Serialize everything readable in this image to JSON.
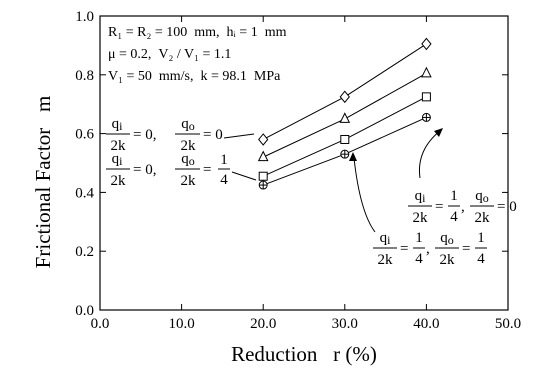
{
  "chart_data": {
    "type": "line",
    "xlabel": "Reduction   r (%)",
    "ylabel": "Frictional Factor   m",
    "xlim": [
      0,
      50
    ],
    "ylim": [
      0,
      1.0
    ],
    "x_ticks": [
      "0.0",
      "10.0",
      "20.0",
      "30.0",
      "40.0",
      "50.0"
    ],
    "y_ticks": [
      "0.0",
      "0.2",
      "0.4",
      "0.6",
      "0.8",
      "1.0"
    ],
    "grid": false,
    "conditions": [
      "R₁ = R₂ = 100  mm,  hᵢ = 1  mm",
      "μ = 0.2,  V₂ / V₁ = 1.1",
      "V₁ = 50  mm/s,  k = 98.1  MPa"
    ],
    "series": [
      {
        "marker": "diamond",
        "label": "qi/2k = 0, qo/2k = 0",
        "x": [
          20,
          30,
          40
        ],
        "y": [
          0.58,
          0.725,
          0.905
        ]
      },
      {
        "marker": "triangle",
        "label": "",
        "x": [
          20,
          30,
          40
        ],
        "y": [
          0.52,
          0.65,
          0.805
        ]
      },
      {
        "marker": "square",
        "label": "qi/2k = 1/4, qo/2k = 0",
        "x": [
          20,
          30,
          40
        ],
        "y": [
          0.455,
          0.58,
          0.725
        ]
      },
      {
        "marker": "circle-plus",
        "label": "qi/2k = 1/4, qo/2k = 1/4",
        "x": [
          20,
          30,
          40
        ],
        "y": [
          0.425,
          0.53,
          0.655
        ]
      }
    ],
    "annotations": [
      {
        "qi_num": "q",
        "qi_sub": "i",
        "qi_den": "2k",
        "qi_val": "0",
        "qo_num": "q",
        "qo_sub": "o",
        "qo_den": "2k",
        "qo_val": "0"
      },
      {
        "qi_num": "q",
        "qi_sub": "i",
        "qi_den": "2k",
        "qi_val": "0",
        "qo_num": "q",
        "qo_sub": "o",
        "qo_den": "2k",
        "qo_val_num": "1",
        "qo_val_den": "4"
      },
      {
        "qi_num": "q",
        "qi_sub": "i",
        "qi_den": "2k",
        "qi_val_num": "1",
        "qi_val_den": "4",
        "qo_num": "q",
        "qo_sub": "o",
        "qo_den": "2k",
        "qo_val": "0"
      },
      {
        "qi_num": "q",
        "qi_sub": "i",
        "qi_den": "2k",
        "qi_val_num": "1",
        "qi_val_den": "4",
        "qo_num": "q",
        "qo_sub": "o",
        "qo_den": "2k",
        "qo_val_num": "1",
        "qo_val_den": "4"
      }
    ]
  }
}
